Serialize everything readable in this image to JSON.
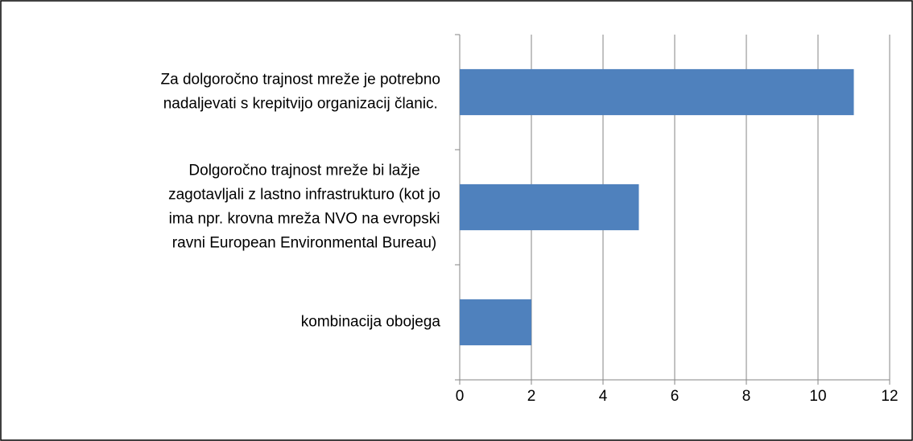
{
  "chart_data": {
    "type": "barh",
    "categories": [
      [
        "Za dolgoročno trajnost mreže je potrebno",
        "nadaljevati s krepitvijo organizacij članic."
      ],
      [
        "Dolgoročno trajnost mreže bi lažje",
        "zagotavljali z lastno infrastrukturo (kot jo",
        "ima npr. krovna mreža NVO na evropski",
        "ravni European Environmental Bureau)"
      ],
      [
        "kombinacija obojega"
      ]
    ],
    "values": [
      11,
      5,
      2
    ],
    "color": "#4f81bd",
    "xlim": [
      0,
      12
    ],
    "xticks": [
      0,
      2,
      4,
      6,
      8,
      10,
      12
    ],
    "grid": true
  }
}
